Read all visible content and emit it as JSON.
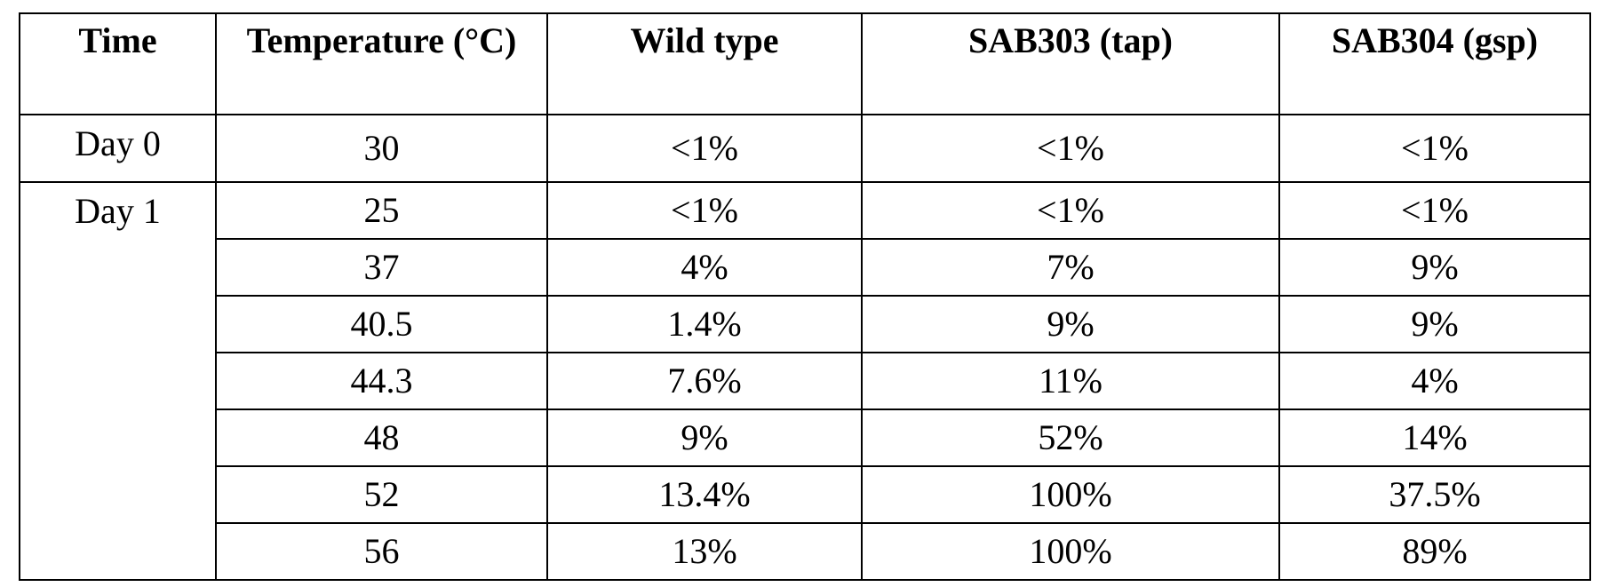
{
  "table": {
    "header": [
      "Time",
      "Temperature (°C)",
      "Wild type",
      "SAB303 (tap)",
      "SAB304 (gsp)"
    ],
    "groups": [
      {
        "time": "Day 0",
        "rows": [
          [
            "30",
            "<1%",
            "<1%",
            "<1%"
          ]
        ]
      },
      {
        "time": "Day 1",
        "rows": [
          [
            "25",
            "<1%",
            "<1%",
            "<1%"
          ],
          [
            "37",
            "4%",
            "7%",
            "9%"
          ],
          [
            "40.5",
            "1.4%",
            "9%",
            "9%"
          ],
          [
            "44.3",
            "7.6%",
            "11%",
            "4%"
          ],
          [
            "48",
            "9%",
            "52%",
            "14%"
          ],
          [
            "52",
            "13.4%",
            "100%",
            "37.5%"
          ],
          [
            "56",
            "13%",
            "100%",
            "89%"
          ]
        ]
      }
    ]
  }
}
